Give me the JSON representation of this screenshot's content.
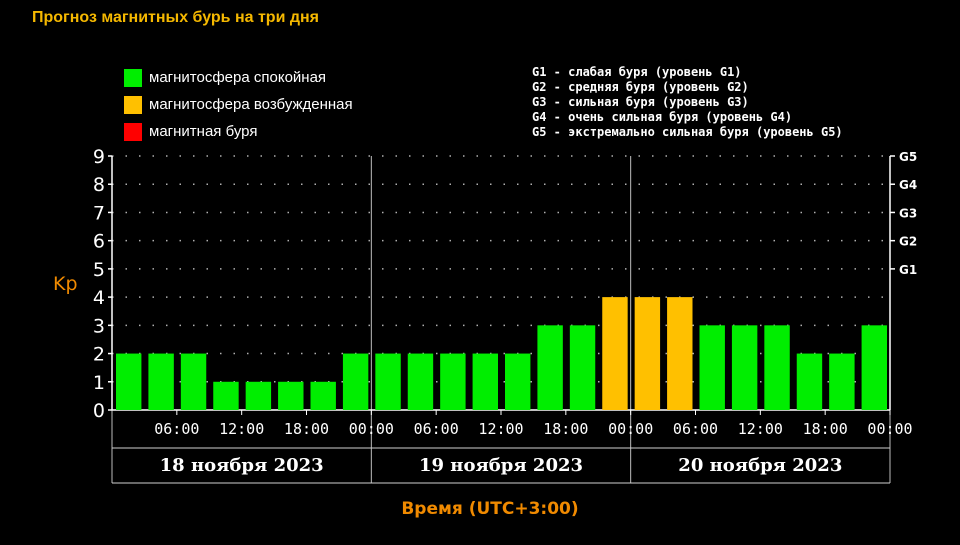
{
  "page": {
    "title": "Прогноз магнитных бурь на три дня"
  },
  "legend": [
    {
      "label": "магнитосфера спокойная",
      "color": "#00ee00"
    },
    {
      "label": "магнитосфера возбужденная",
      "color": "#ffc000"
    },
    {
      "label": "магнитная буря",
      "color": "#ff0000"
    }
  ],
  "g_levels": [
    "G1 - слабая буря (уровень G1)",
    "G2 - средняя буря (уровень G2)",
    "G3 - сильная буря (уровень G3)",
    "G4 - очень сильная буря (уровень G4)",
    "G5 - экстремально сильная буря (уровень G5)"
  ],
  "chart_data": {
    "type": "bar",
    "title": "Прогноз магнитных бурь на три дня",
    "ylabel": "Kp",
    "xlabel": "Время (UTC+3:00)",
    "ylim": [
      0,
      9
    ],
    "yticks": [
      "0",
      "1",
      "2",
      "3",
      "4",
      "5",
      "6",
      "7",
      "8",
      "9"
    ],
    "g_ticks": [
      {
        "label": "G1",
        "kp": 5
      },
      {
        "label": "G2",
        "kp": 6
      },
      {
        "label": "G3",
        "kp": 7
      },
      {
        "label": "G4",
        "kp": 8
      },
      {
        "label": "G5",
        "kp": 9
      }
    ],
    "time_ticks": [
      "06:00",
      "12:00",
      "18:00",
      "00:00",
      "06:00",
      "12:00",
      "18:00",
      "00:00",
      "06:00",
      "12:00",
      "18:00",
      "00:00"
    ],
    "days": [
      "18 ноября 2023",
      "19 ноября 2023",
      "20 ноября 2023"
    ],
    "values": [
      2,
      2,
      2,
      1,
      1,
      1,
      1,
      2,
      2,
      2,
      2,
      2,
      2,
      3,
      3,
      4,
      4,
      4,
      3,
      3,
      3,
      2,
      2,
      3
    ],
    "colors": [
      "#00ee00",
      "#00ee00",
      "#00ee00",
      "#00ee00",
      "#00ee00",
      "#00ee00",
      "#00ee00",
      "#00ee00",
      "#00ee00",
      "#00ee00",
      "#00ee00",
      "#00ee00",
      "#00ee00",
      "#00ee00",
      "#00ee00",
      "#ffc000",
      "#ffc000",
      "#ffc000",
      "#00ee00",
      "#00ee00",
      "#00ee00",
      "#00ee00",
      "#00ee00",
      "#00ee00"
    ],
    "grid": true,
    "legend_position": "top-left"
  }
}
